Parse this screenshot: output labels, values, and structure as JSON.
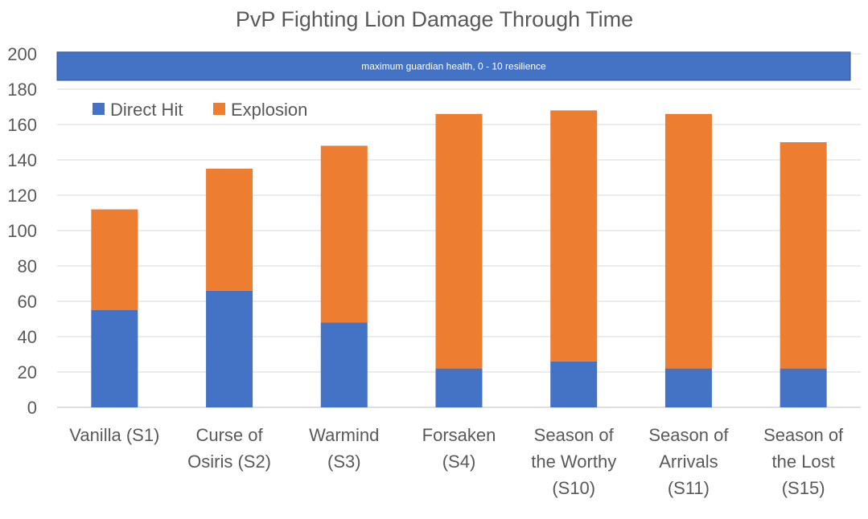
{
  "chart_data": {
    "type": "bar",
    "stacked": true,
    "title": "PvP Fighting Lion Damage Through Time",
    "xlabel": "",
    "ylabel": "",
    "ylim": [
      0,
      200
    ],
    "yticks": [
      0,
      20,
      40,
      60,
      80,
      100,
      120,
      140,
      160,
      180,
      200
    ],
    "grid": true,
    "legend_position": "top-left",
    "categories": [
      "Vanilla (S1)",
      "Curse of Osiris (S2)",
      "Warmind (S3)",
      "Forsaken (S4)",
      "Season of the Worthy (S10)",
      "Season of Arrivals (S11)",
      "Season of the Lost (S15)"
    ],
    "category_lines": [
      [
        "Vanilla (S1)"
      ],
      [
        "Curse of",
        "Osiris (S2)"
      ],
      [
        "Warmind",
        "(S3)"
      ],
      [
        "Forsaken",
        "(S4)"
      ],
      [
        "Season of",
        "the Worthy",
        "(S10)"
      ],
      [
        "Season of",
        "Arrivals",
        "(S11)"
      ],
      [
        "Season of",
        "the Lost",
        "(S15)"
      ]
    ],
    "series": [
      {
        "name": "Direct Hit",
        "color": "#4472C4",
        "values": [
          55,
          66,
          48,
          22,
          26,
          22,
          22
        ]
      },
      {
        "name": "Explosion",
        "color": "#ED7D31",
        "values": [
          57,
          69,
          100,
          144,
          142,
          144,
          128
        ]
      }
    ],
    "annotation": {
      "text": "maximum guardian health, 0 - 10 resilience",
      "y_range": [
        185,
        201
      ],
      "color": "#4472C4"
    }
  }
}
